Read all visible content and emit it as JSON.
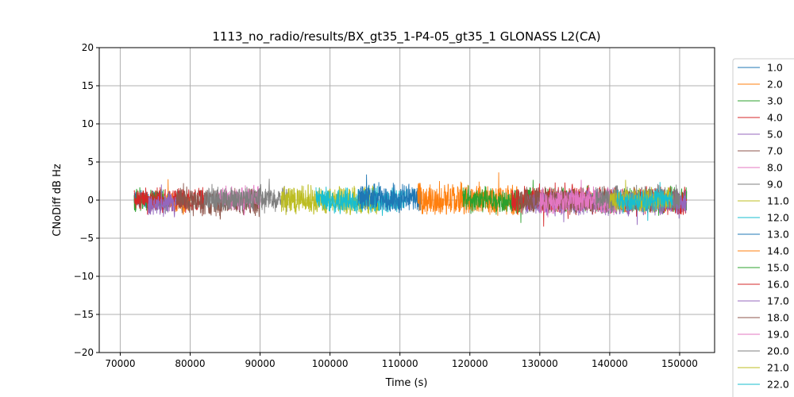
{
  "chart_data": {
    "type": "line",
    "title": "1113_no_radio/results/BX_gt35_1-P4-05_gt35_1 GLONASS L2(CA)",
    "xlabel": "Time (s)",
    "ylabel": "CNoDiff dB Hz",
    "xlim": [
      67000,
      155000
    ],
    "ylim": [
      -20,
      20
    ],
    "x_ticks": [
      70000,
      80000,
      90000,
      100000,
      110000,
      120000,
      130000,
      140000,
      150000
    ],
    "x_tick_labels": [
      "70000",
      "80000",
      "90000",
      "100000",
      "110000",
      "120000",
      "130000",
      "140000",
      "150000"
    ],
    "y_ticks": [
      -20,
      -15,
      -10,
      -5,
      0,
      5,
      10,
      15,
      20
    ],
    "y_tick_labels": [
      "−20",
      "−15",
      "−10",
      "−5",
      "0",
      "5",
      "10",
      "15",
      "20"
    ],
    "grid": true,
    "legend_position": "right, outside plot",
    "series": [
      {
        "name": "1.0",
        "color": "#1f77b4",
        "x_range": [
          72000,
          76000
        ],
        "mean": 0.0,
        "amplitude": 1.4
      },
      {
        "name": "2.0",
        "color": "#ff7f0e",
        "x_range": [
          74000,
          80000
        ],
        "mean": -0.2,
        "amplitude": 1.4
      },
      {
        "name": "3.0",
        "color": "#2ca02c",
        "x_range": [
          72000,
          77000
        ],
        "mean": 0.0,
        "amplitude": 1.6
      },
      {
        "name": "4.0",
        "color": "#d62728",
        "x_range": [
          72000,
          82000
        ],
        "mean": 0.0,
        "amplitude": 1.6
      },
      {
        "name": "5.0",
        "color": "#9467bd",
        "x_range": [
          74000,
          78000
        ],
        "mean": -0.8,
        "amplitude": 1.6
      },
      {
        "name": "7.0",
        "color": "#8c564b",
        "x_range": [
          78000,
          90000
        ],
        "mean": -0.3,
        "amplitude": 2.0
      },
      {
        "name": "8.0",
        "color": "#e377c2",
        "x_range": [
          84000,
          90000
        ],
        "mean": 0.2,
        "amplitude": 1.8
      },
      {
        "name": "9.0",
        "color": "#7f7f7f",
        "x_range": [
          82000,
          94000
        ],
        "mean": 0.2,
        "amplitude": 1.8
      },
      {
        "name": "11.0",
        "color": "#bcbd22",
        "x_range": [
          93000,
          107000
        ],
        "mean": 0.0,
        "amplitude": 2.0
      },
      {
        "name": "12.0",
        "color": "#17becf",
        "x_range": [
          98000,
          111000
        ],
        "mean": 0.0,
        "amplitude": 1.8
      },
      {
        "name": "13.0",
        "color": "#1f77b4",
        "x_range": [
          104000,
          113000
        ],
        "mean": 0.2,
        "amplitude": 2.0
      },
      {
        "name": "14.0",
        "color": "#ff7f0e",
        "x_range": [
          112500,
          127000
        ],
        "mean": 0.0,
        "amplitude": 2.2
      },
      {
        "name": "15.0",
        "color": "#2ca02c",
        "x_range": [
          119000,
          151000
        ],
        "mean": 0.0,
        "amplitude": 1.8
      },
      {
        "name": "16.0",
        "color": "#d62728",
        "x_range": [
          126000,
          151000
        ],
        "mean": 0.0,
        "amplitude": 2.0
      },
      {
        "name": "17.0",
        "color": "#9467bd",
        "x_range": [
          128000,
          151000
        ],
        "mean": -0.3,
        "amplitude": 1.8
      },
      {
        "name": "18.0",
        "color": "#8c564b",
        "x_range": [
          127000,
          140000
        ],
        "mean": 0.0,
        "amplitude": 1.8
      },
      {
        "name": "19.0",
        "color": "#e377c2",
        "x_range": [
          130000,
          141000
        ],
        "mean": -0.2,
        "amplitude": 1.8
      },
      {
        "name": "20.0",
        "color": "#7f7f7f",
        "x_range": [
          138000,
          150000
        ],
        "mean": 0.0,
        "amplitude": 1.8
      },
      {
        "name": "21.0",
        "color": "#bcbd22",
        "x_range": [
          140000,
          149000
        ],
        "mean": 0.0,
        "amplitude": 1.6
      },
      {
        "name": "22.0",
        "color": "#17becf",
        "x_range": [
          141000,
          149000
        ],
        "mean": 0.0,
        "amplitude": 1.6
      }
    ]
  }
}
